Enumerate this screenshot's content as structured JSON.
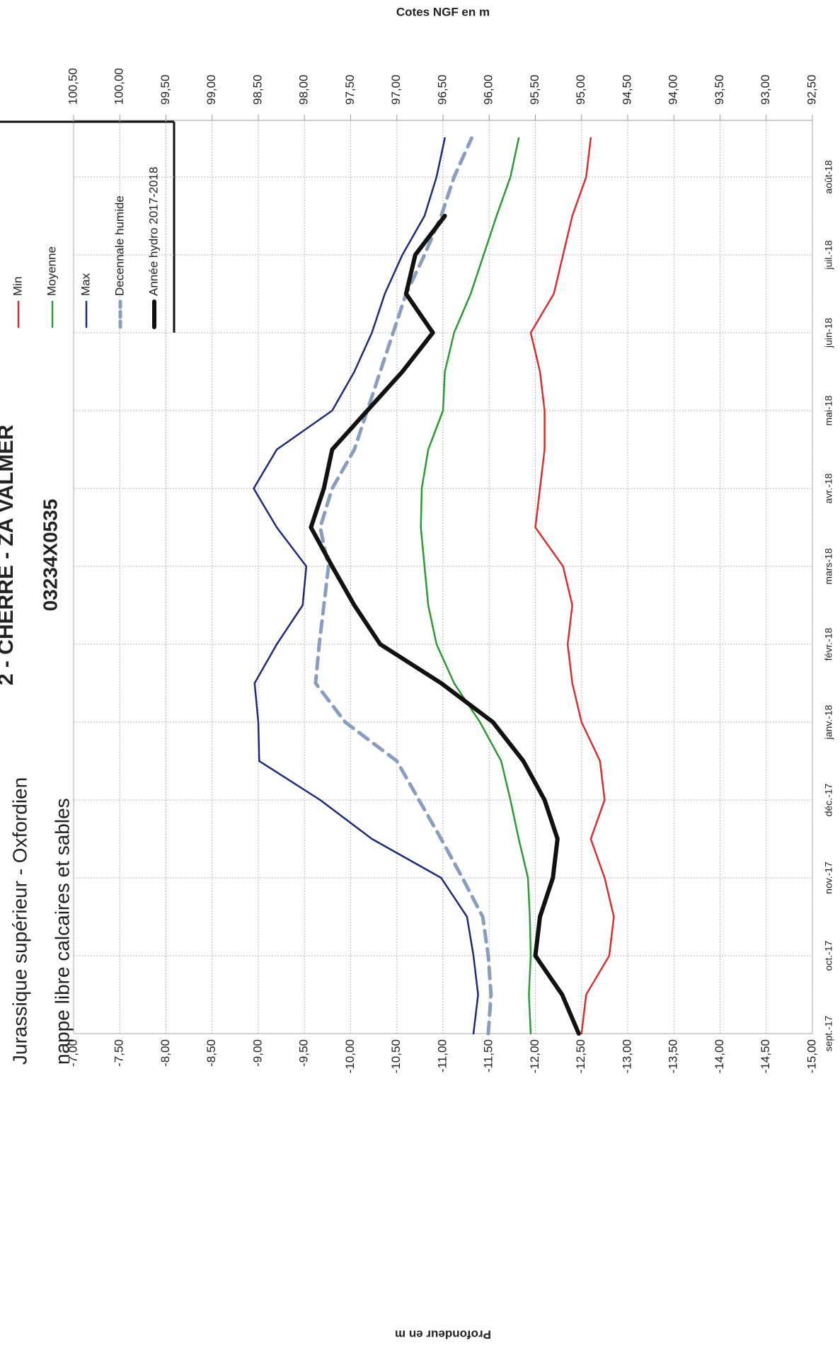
{
  "chart_data": {
    "type": "line",
    "title": "2 - CHERRE - ZA VALMER",
    "subtitle": "03234X0535",
    "annotations": [
      "Jurassique supérieur - Oxfordien",
      "nappe libre calcaires et sables"
    ],
    "y_label": "Profondeur en m",
    "y2_label": "Cotes NGF en m",
    "categories": [
      "sept.-17",
      null,
      "oct.-17",
      null,
      "nov.-17",
      null,
      "déc.-17",
      null,
      "janv.-18",
      null,
      "févr.-18",
      null,
      "mars-18",
      null,
      "avr.-18",
      null,
      "mai-18",
      null,
      "juin-18",
      null,
      "juil.-18",
      null,
      "août-18",
      null
    ],
    "ylim": [
      -7,
      -15
    ],
    "yticks": [
      {
        "value": -7,
        "label": "-7,00"
      },
      {
        "value": -7.5,
        "label": "-7,50"
      },
      {
        "value": -8,
        "label": "-8,00"
      },
      {
        "value": -8.5,
        "label": "-8,50"
      },
      {
        "value": -9,
        "label": "-9,00"
      },
      {
        "value": -9.5,
        "label": "-9,50"
      },
      {
        "value": -10,
        "label": "-10,00"
      },
      {
        "value": -10.5,
        "label": "-10,50"
      },
      {
        "value": -11,
        "label": "-11,00"
      },
      {
        "value": -11.5,
        "label": "-11,50"
      },
      {
        "value": -12,
        "label": "-12,00"
      },
      {
        "value": -12.5,
        "label": "-12,50"
      },
      {
        "value": -13,
        "label": "-13,00"
      },
      {
        "value": -13.5,
        "label": "-13,50"
      },
      {
        "value": -14,
        "label": "-14,00"
      },
      {
        "value": -14.5,
        "label": "-14,50"
      },
      {
        "value": -15,
        "label": "-15,00"
      }
    ],
    "y2lim": [
      100.5,
      92.5
    ],
    "y2ticks": [
      {
        "value": 100.5,
        "label": "100,50"
      },
      {
        "value": 100,
        "label": "100,00"
      },
      {
        "value": 99.5,
        "label": "99,50"
      },
      {
        "value": 99,
        "label": "99,00"
      },
      {
        "value": 98.5,
        "label": "98,50"
      },
      {
        "value": 98,
        "label": "98,00"
      },
      {
        "value": 97.5,
        "label": "97,50"
      },
      {
        "value": 97,
        "label": "97,00"
      },
      {
        "value": 96.5,
        "label": "96,50"
      },
      {
        "value": 96,
        "label": "96,00"
      },
      {
        "value": 95.5,
        "label": "95,50"
      },
      {
        "value": 95,
        "label": "95,00"
      },
      {
        "value": 94.5,
        "label": "94,50"
      },
      {
        "value": 94,
        "label": "94,00"
      },
      {
        "value": 93.5,
        "label": "93,50"
      },
      {
        "value": 93,
        "label": "93,00"
      },
      {
        "value": 92.5,
        "label": "92,50"
      }
    ],
    "grid": true,
    "legend": "top-right",
    "series": [
      {
        "name": "Min",
        "color": "#d63030",
        "linewidth": 2.5,
        "line_style": "solid",
        "values": [
          -12.5,
          -12.55,
          -12.8,
          -12.85,
          -12.75,
          -12.6,
          -12.75,
          -12.7,
          -12.5,
          -12.4,
          -12.35,
          -12.4,
          -12.3,
          -12.0,
          -12.05,
          -12.1,
          -12.1,
          -12.05,
          -11.95,
          -12.2,
          -12.3,
          -12.4,
          -12.55,
          -12.6
        ]
      },
      {
        "name": "Moyenne",
        "color": "#2e9a35",
        "linewidth": 2.5,
        "line_style": "solid",
        "values": [
          -11.95,
          -11.93,
          -11.95,
          -11.94,
          -11.92,
          -11.82,
          -11.73,
          -11.63,
          -11.4,
          -11.12,
          -10.93,
          -10.84,
          -10.8,
          -10.76,
          -10.77,
          -10.84,
          -11.0,
          -11.02,
          -11.12,
          -11.3,
          -11.44,
          -11.58,
          -11.73,
          -11.82
        ]
      },
      {
        "name": "Max",
        "color": "#1f2a7a",
        "linewidth": 2.5,
        "line_style": "solid",
        "values": [
          -11.33,
          -11.38,
          -11.33,
          -11.26,
          -10.98,
          -10.23,
          -9.67,
          -9.01,
          -9.0,
          -8.96,
          -9.2,
          -9.48,
          -9.52,
          -9.2,
          -8.95,
          -9.2,
          -9.8,
          -10.04,
          -10.23,
          -10.37,
          -10.56,
          -10.8,
          -10.93,
          -11.02
        ]
      },
      {
        "name": "Decennale humide",
        "color": "#8a9cc0",
        "linewidth": 5,
        "line_style": "dashed",
        "values": [
          -11.49,
          -11.52,
          -11.49,
          -11.43,
          -11.21,
          -10.98,
          -10.74,
          -10.5,
          -9.94,
          -9.62,
          -9.66,
          -9.71,
          -9.76,
          -9.67,
          -9.8,
          -10.04,
          -10.18,
          -10.32,
          -10.46,
          -10.6,
          -10.8,
          -10.98,
          -11.12,
          -11.31
        ]
      },
      {
        "name": "Année hydro 2017-2018",
        "color": "#111111",
        "linewidth": 6,
        "line_style": "solid",
        "values": [
          -12.47,
          -12.29,
          -12.0,
          -12.05,
          -12.19,
          -12.24,
          -12.1,
          -11.87,
          -11.54,
          -10.98,
          -10.32,
          -10.04,
          -9.8,
          -9.57,
          -9.71,
          -9.8,
          -10.18,
          -10.56,
          -10.89,
          -10.6,
          -10.7,
          -11.02,
          null,
          null
        ]
      }
    ]
  }
}
